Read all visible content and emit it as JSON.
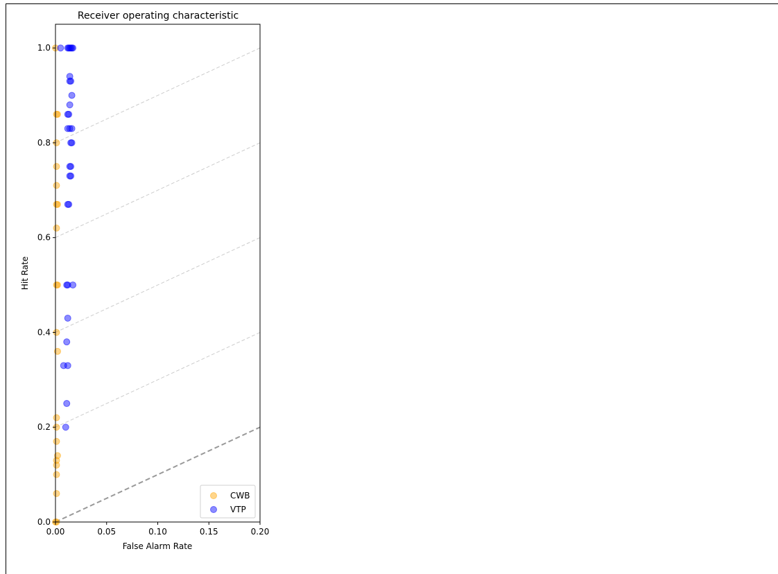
{
  "chart_data": {
    "type": "scatter",
    "title": "Receiver operating characteristic",
    "xlabel": "False Alarm Rate",
    "ylabel": "Hit Rate",
    "xlim": [
      0.0,
      0.2
    ],
    "ylim": [
      0.0,
      1.05
    ],
    "x_ticks": [
      0.0,
      0.05,
      0.1,
      0.15,
      0.2
    ],
    "x_tick_labels": [
      "0.00",
      "0.05",
      "0.10",
      "0.15",
      "0.20"
    ],
    "y_ticks": [
      0.0,
      0.2,
      0.4,
      0.6,
      0.8,
      1.0
    ],
    "y_tick_labels": [
      "0.0",
      "0.2",
      "0.4",
      "0.6",
      "0.8",
      "1.0"
    ],
    "grid": false,
    "legend_position": "bottom-right",
    "reference_lines": {
      "diagonal": {
        "x": [
          0,
          0.2
        ],
        "y": [
          0,
          0.2
        ],
        "color": "#999999",
        "style": "dashed"
      },
      "skill_lines": [
        {
          "x": [
            0,
            0.2
          ],
          "y": [
            0.2,
            0.4
          ]
        },
        {
          "x": [
            0,
            0.2
          ],
          "y": [
            0.4,
            0.6
          ]
        },
        {
          "x": [
            0,
            0.2
          ],
          "y": [
            0.6,
            0.8
          ]
        },
        {
          "x": [
            0,
            0.2
          ],
          "y": [
            0.8,
            1.0
          ]
        }
      ],
      "skill_color": "#cccccc"
    },
    "series": [
      {
        "name": "CWB",
        "color": "#ffa500",
        "x": [
          0,
          0.001,
          0.002,
          0.001,
          0.001,
          0.001,
          0.001,
          0.002,
          0.001,
          0.002,
          0.001,
          0.001,
          0.002,
          0.001,
          0.001,
          0.001,
          0.002,
          0.001,
          0.001,
          0.001,
          0.001,
          0,
          0.001
        ],
        "y": [
          1.0,
          0.86,
          0.86,
          0.8,
          0.75,
          0.71,
          0.67,
          0.67,
          0.62,
          0.5,
          0.5,
          0.4,
          0.36,
          0.22,
          0.2,
          0.17,
          0.14,
          0.13,
          0.12,
          0.1,
          0.06,
          0.0,
          0.0
        ]
      },
      {
        "name": "VTP",
        "color": "#0000ff",
        "x": [
          0.005,
          0.012,
          0.013,
          0.014,
          0.015,
          0.016,
          0.017,
          0.014,
          0.014,
          0.015,
          0.016,
          0.014,
          0.013,
          0.012,
          0.014,
          0.016,
          0.012,
          0.015,
          0.016,
          0.014,
          0.015,
          0.015,
          0.014,
          0.012,
          0.013,
          0.011,
          0.012,
          0.017,
          0.012,
          0.011,
          0.008,
          0.012,
          0.011,
          0.01
        ],
        "y": [
          1.0,
          1.0,
          1.0,
          1.0,
          1.0,
          1.0,
          1.0,
          0.94,
          0.93,
          0.93,
          0.9,
          0.88,
          0.86,
          0.86,
          0.83,
          0.83,
          0.83,
          0.8,
          0.8,
          0.75,
          0.75,
          0.73,
          0.73,
          0.67,
          0.67,
          0.5,
          0.5,
          0.5,
          0.43,
          0.38,
          0.33,
          0.33,
          0.25,
          0.2
        ]
      }
    ]
  }
}
